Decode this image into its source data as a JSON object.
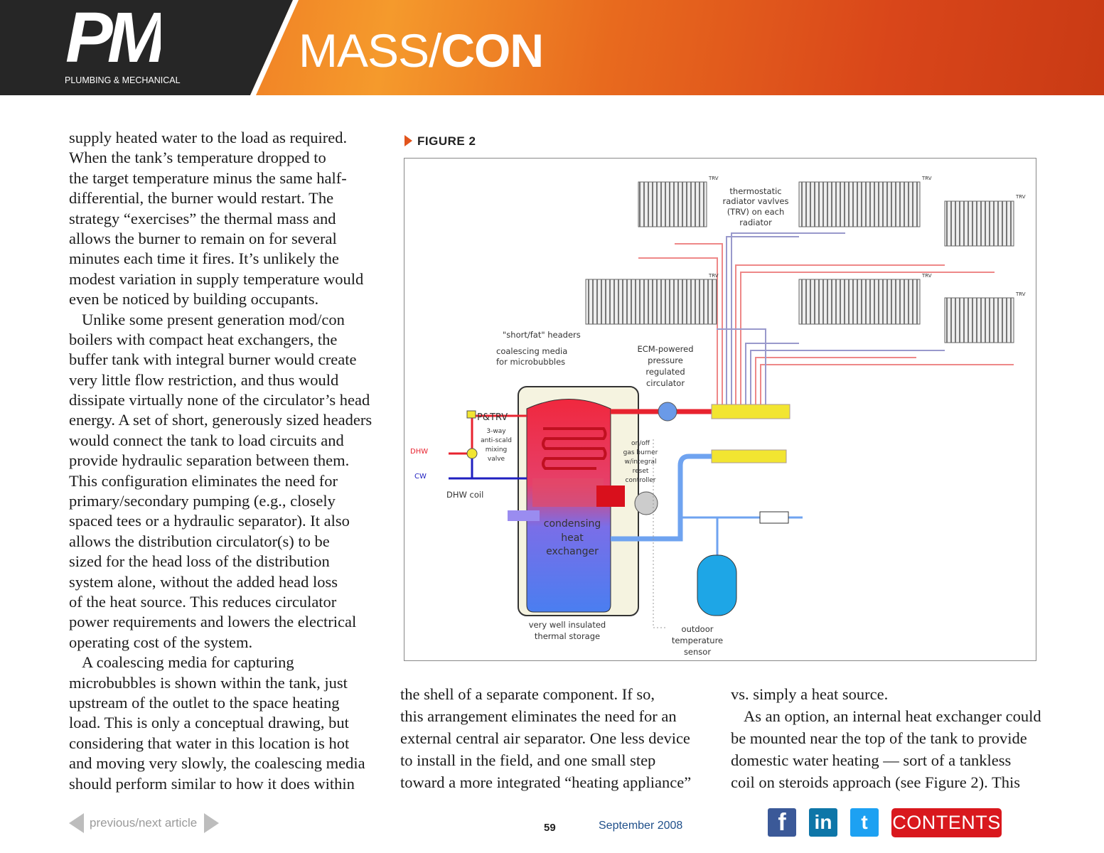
{
  "header": {
    "logo_text": "PM",
    "logo_subtitle": "PLUMBING & MECHANICAL",
    "title_light": "MASS/",
    "title_bold": "CON"
  },
  "columns": {
    "left": [
      "supply heated water to the load as required.",
      "When the tank’s temperature dropped to",
      "the target temperature minus the same half-",
      "differential, the burner would restart. The",
      "strategy “exercises” the thermal mass and",
      "allows the burner to remain on for several",
      "minutes each time it fires. It’s unlikely the",
      "modest variation in supply temperature would",
      "even be noticed by building occupants.",
      "Unlike some present generation mod/con",
      "boilers with compact heat exchangers, the",
      "buffer tank with integral burner would create",
      "very little flow restriction, and thus would",
      "dissipate virtually none of the circulator’s head",
      "energy. A set of short, generously sized headers",
      "would connect the tank to load circuits and",
      "provide hydraulic separation between them.",
      "This configuration eliminates the need for",
      "primary/secondary pumping (e.g., closely",
      "spaced tees or a hydraulic separator). It also",
      "allows the distribution circulator(s) to be",
      "sized for the head loss of the distribution",
      "system alone, without the added head loss",
      "of the heat source. This reduces circulator",
      "power requirements and lowers the electrical",
      "operating cost of the system.",
      "A coalescing media for capturing",
      "microbubbles is shown within the tank, just",
      "upstream of the outlet to the space heating",
      "load. This is only a conceptual drawing, but",
      "considering that water in this location is hot",
      "and moving very slowly, the coalescing media",
      "should perform similar to how it does within"
    ],
    "left_indented": [
      9,
      26
    ],
    "middle": [
      "the shell of a separate component. If so,",
      "this arrangement eliminates the need for an",
      "external central air separator. One less device",
      "to install in the field, and one small step",
      "toward a more integrated “heating appliance”"
    ],
    "middle_indented": [],
    "right": [
      "vs. simply a heat source.",
      "As an option, an internal heat exchanger could",
      "be mounted near the top of the tank to provide",
      "domestic water heating — sort of a tankless",
      "coil on steroids approach (see Figure 2).  This"
    ],
    "right_indented": [
      1
    ]
  },
  "figure": {
    "label": "FIGURE 2",
    "trv": "TRV",
    "trv_note": [
      "thermostatic",
      "radiator vavlves",
      "(TRV) on each",
      "radiator"
    ],
    "headers": "\"short/fat\" headers",
    "coalescing": [
      "coalescing media",
      "for microbubbles"
    ],
    "circulator": [
      "ECM-powered",
      "pressure",
      "regulated",
      "circulator"
    ],
    "ptrv": "P&TRV",
    "mixing_valve": [
      "3-way",
      "anti-scald",
      "mixing",
      "valve"
    ],
    "dhw": "DHW",
    "cw": "CW",
    "dhw_coil": "DHW coil",
    "burner": [
      "on/off",
      "gas burner",
      "w/integral",
      "reset",
      "controller"
    ],
    "heat_exchanger": [
      "condensing",
      "heat",
      "exchanger"
    ],
    "storage": [
      "very well insulated",
      "thermal storage"
    ],
    "sensor": [
      "outdoor",
      "temperature",
      "sensor"
    ],
    "colors": {
      "hot": "#e8232f",
      "cold": "#3a3ad8",
      "return": "#6fa3f0",
      "fittings": "#f2e531",
      "expansion_tank": "#1ea6e6"
    }
  },
  "footer": {
    "nav_label": "previous/next article",
    "page_number": "59",
    "date": "September 2008",
    "facebook": "f",
    "linkedin": "in",
    "twitter": "t",
    "contents": "CONTENTS"
  }
}
